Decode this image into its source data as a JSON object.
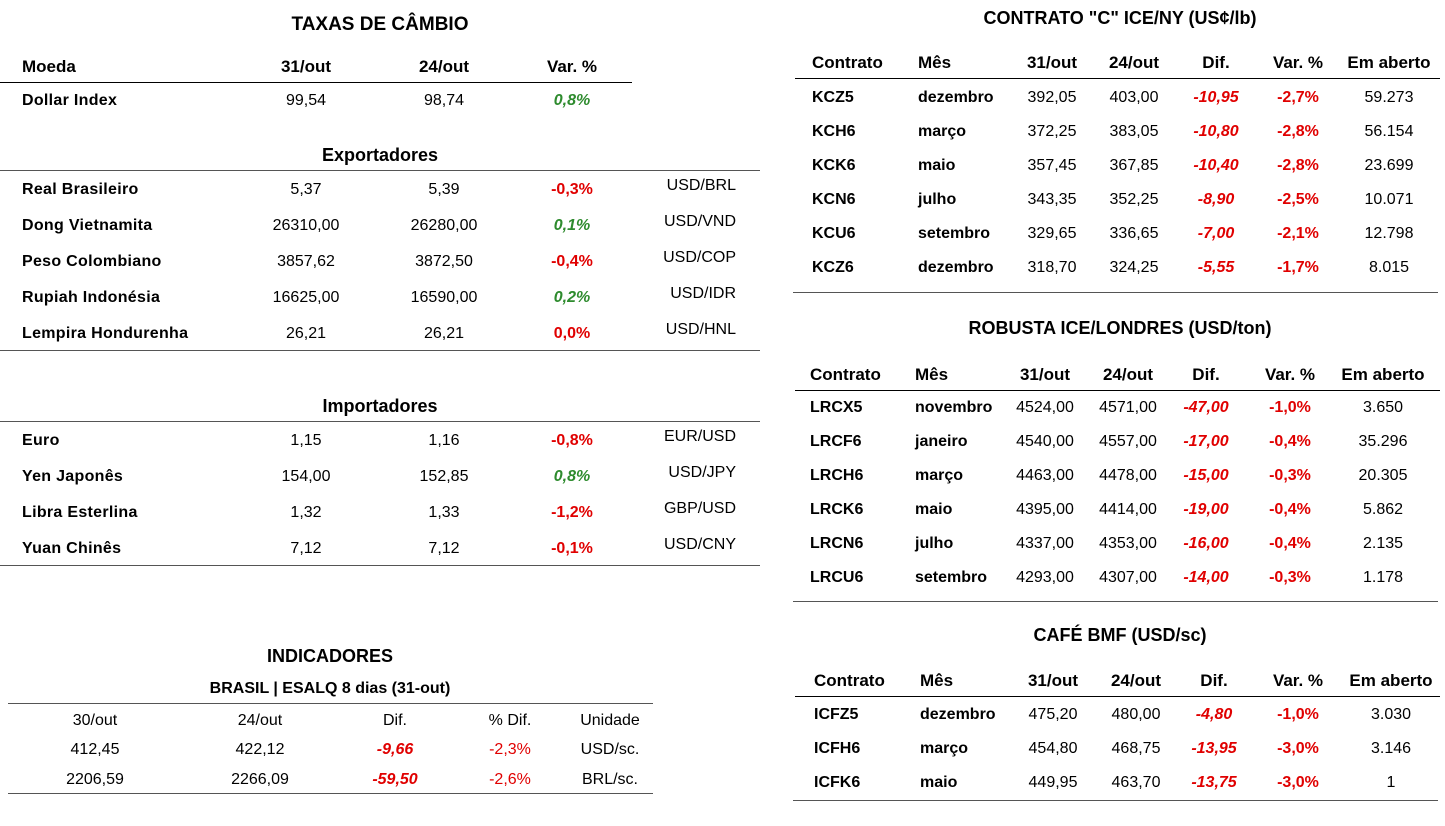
{
  "fx": {
    "title": "TAXAS DE CÂMBIO",
    "headers": {
      "moeda": "Moeda",
      "d1": "31/out",
      "d2": "24/out",
      "var": "Var. %"
    },
    "dollar_index": {
      "name": "Dollar Index",
      "v1": "99,54",
      "v2": "98,74",
      "var": "0,8%"
    },
    "exporters_title": "Exportadores",
    "exporters": [
      {
        "name": "Real Brasileiro",
        "v1": "5,37",
        "v2": "5,39",
        "var": "-0,3%",
        "pair": "USD/BRL"
      },
      {
        "name": "Dong Vietnamita",
        "v1": "26310,00",
        "v2": "26280,00",
        "var": "0,1%",
        "pair": "USD/VND"
      },
      {
        "name": "Peso Colombiano",
        "v1": "3857,62",
        "v2": "3872,50",
        "var": "-0,4%",
        "pair": "USD/COP"
      },
      {
        "name": "Rupiah Indonésia",
        "v1": "16625,00",
        "v2": "16590,00",
        "var": "0,2%",
        "pair": "USD/IDR"
      },
      {
        "name": "Lempira Hondurenha",
        "v1": "26,21",
        "v2": "26,21",
        "var": "0,0%",
        "pair": "USD/HNL"
      }
    ],
    "importers_title": "Importadores",
    "importers": [
      {
        "name": "Euro",
        "v1": "1,15",
        "v2": "1,16",
        "var": "-0,8%",
        "pair": "EUR/USD"
      },
      {
        "name": "Yen Japonês",
        "v1": "154,00",
        "v2": "152,85",
        "var": "0,8%",
        "pair": "USD/JPY"
      },
      {
        "name": "Libra Esterlina",
        "v1": "1,32",
        "v2": "1,33",
        "var": "-1,2%",
        "pair": "GBP/USD"
      },
      {
        "name": "Yuan Chinês",
        "v1": "7,12",
        "v2": "7,12",
        "var": "-0,1%",
        "pair": "USD/CNY"
      }
    ]
  },
  "indicators": {
    "title": "INDICADORES",
    "subtitle": "BRASIL | ESALQ 8 dias (31-out)",
    "headers": [
      "30/out",
      "24/out",
      "Dif.",
      "% Dif.",
      "Unidade"
    ],
    "rows": [
      [
        "412,45",
        "422,12",
        "-9,66",
        "-2,3%",
        "USD/sc."
      ],
      [
        "2206,59",
        "2266,09",
        "-59,50",
        "-2,6%",
        "BRL/sc."
      ]
    ]
  },
  "contracts_headers": [
    "Contrato",
    "Mês",
    "31/out",
    "24/out",
    "Dif.",
    "Var. %",
    "Em aberto"
  ],
  "ice_ny": {
    "title": "CONTRATO \"C\" ICE/NY (US¢/lb)",
    "rows": [
      [
        "KCZ5",
        "dezembro",
        "392,05",
        "403,00",
        "-10,95",
        "-2,7%",
        "59.273"
      ],
      [
        "KCH6",
        "março",
        "372,25",
        "383,05",
        "-10,80",
        "-2,8%",
        "56.154"
      ],
      [
        "KCK6",
        "maio",
        "357,45",
        "367,85",
        "-10,40",
        "-2,8%",
        "23.699"
      ],
      [
        "KCN6",
        "julho",
        "343,35",
        "352,25",
        "-8,90",
        "-2,5%",
        "10.071"
      ],
      [
        "KCU6",
        "setembro",
        "329,65",
        "336,65",
        "-7,00",
        "-2,1%",
        "12.798"
      ],
      [
        "KCZ6",
        "dezembro",
        "318,70",
        "324,25",
        "-5,55",
        "-1,7%",
        "8.015"
      ]
    ]
  },
  "robusta": {
    "title": "ROBUSTA ICE/LONDRES (USD/ton)",
    "rows": [
      [
        "LRCX5",
        "novembro",
        "4524,00",
        "4571,00",
        "-47,00",
        "-1,0%",
        "3.650"
      ],
      [
        "LRCF6",
        "janeiro",
        "4540,00",
        "4557,00",
        "-17,00",
        "-0,4%",
        "35.296"
      ],
      [
        "LRCH6",
        "março",
        "4463,00",
        "4478,00",
        "-15,00",
        "-0,3%",
        "20.305"
      ],
      [
        "LRCK6",
        "maio",
        "4395,00",
        "4414,00",
        "-19,00",
        "-0,4%",
        "5.862"
      ],
      [
        "LRCN6",
        "julho",
        "4337,00",
        "4353,00",
        "-16,00",
        "-0,4%",
        "2.135"
      ],
      [
        "LRCU6",
        "setembro",
        "4293,00",
        "4307,00",
        "-14,00",
        "-0,3%",
        "1.178"
      ]
    ]
  },
  "bmf": {
    "title": "CAFÉ BMF (USD/sc)",
    "rows": [
      [
        "ICFZ5",
        "dezembro",
        "475,20",
        "480,00",
        "-4,80",
        "-1,0%",
        "3.030"
      ],
      [
        "ICFH6",
        "março",
        "454,80",
        "468,75",
        "-13,95",
        "-3,0%",
        "3.146"
      ],
      [
        "ICFK6",
        "maio",
        "449,95",
        "463,70",
        "-13,75",
        "-3,0%",
        "1"
      ]
    ]
  },
  "colors": {
    "negative": "#e00000",
    "positive": "#2e8b2e"
  }
}
